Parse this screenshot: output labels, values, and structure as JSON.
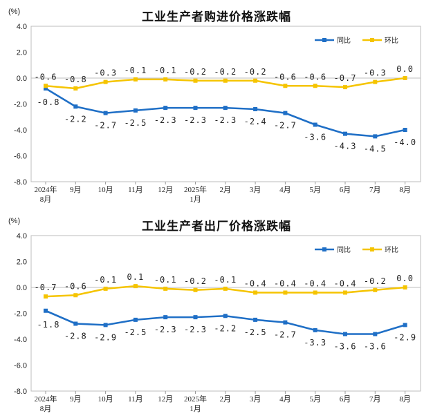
{
  "chart_data": [
    {
      "type": "line",
      "title": "工业生产者购进价格涨跌幅",
      "unit": "(%)",
      "categories": [
        [
          "2024年",
          "8月"
        ],
        [
          "9月"
        ],
        [
          "10月"
        ],
        [
          "11月"
        ],
        [
          "12月"
        ],
        [
          "2025年",
          "1月"
        ],
        [
          "2月"
        ],
        [
          "3月"
        ],
        [
          "4月"
        ],
        [
          "5月"
        ],
        [
          "6月"
        ],
        [
          "7月"
        ],
        [
          "8月"
        ]
      ],
      "ylim": [
        -8.0,
        4.0
      ],
      "yticks": [
        "4.0",
        "2.0",
        "0.0",
        "-2.0",
        "-4.0",
        "-6.0",
        "-8.0"
      ],
      "legend_position": "top-right",
      "grid": false,
      "series": [
        {
          "name": "同比",
          "color": "#1f6fc6",
          "values": [
            -0.8,
            -2.2,
            -2.7,
            -2.5,
            -2.3,
            -2.3,
            -2.3,
            -2.4,
            -2.7,
            -3.6,
            -4.3,
            -4.5,
            -4.0
          ],
          "labels": [
            "-0.8",
            "-2.2",
            "-2.7",
            "-2.5",
            "-2.3",
            "-2.3",
            "-2.3",
            "-2.4",
            "-2.7",
            "-3.6",
            "-4.3",
            "-4.5",
            "-4.0"
          ]
        },
        {
          "name": "环比",
          "color": "#f5c400",
          "values": [
            -0.6,
            -0.8,
            -0.3,
            -0.1,
            -0.1,
            -0.2,
            -0.2,
            -0.2,
            -0.6,
            -0.6,
            -0.7,
            -0.3,
            0.0
          ],
          "labels": [
            "-0.6",
            "-0.8",
            "-0.3",
            "-0.1",
            "-0.1",
            "-0.2",
            "-0.2",
            "-0.2",
            "-0.6",
            "-0.6",
            "-0.7",
            "-0.3",
            "0.0"
          ]
        }
      ]
    },
    {
      "type": "line",
      "title": "工业生产者出厂价格涨跌幅",
      "unit": "(%)",
      "categories": [
        [
          "2024年",
          "8月"
        ],
        [
          "9月"
        ],
        [
          "10月"
        ],
        [
          "11月"
        ],
        [
          "12月"
        ],
        [
          "2025年",
          "1月"
        ],
        [
          "2月"
        ],
        [
          "3月"
        ],
        [
          "4月"
        ],
        [
          "5月"
        ],
        [
          "6月"
        ],
        [
          "7月"
        ],
        [
          "8月"
        ]
      ],
      "ylim": [
        -8.0,
        4.0
      ],
      "yticks": [
        "4.0",
        "2.0",
        "0.0",
        "-2.0",
        "-4.0",
        "-6.0",
        "-8.0"
      ],
      "legend_position": "top-right",
      "grid": false,
      "series": [
        {
          "name": "同比",
          "color": "#1f6fc6",
          "values": [
            -1.8,
            -2.8,
            -2.9,
            -2.5,
            -2.3,
            -2.3,
            -2.2,
            -2.5,
            -2.7,
            -3.3,
            -3.6,
            -3.6,
            -2.9
          ],
          "labels": [
            "-1.8",
            "-2.8",
            "-2.9",
            "-2.5",
            "-2.3",
            "-2.3",
            "-2.2",
            "-2.5",
            "-2.7",
            "-3.3",
            "-3.6",
            "-3.6",
            "-2.9"
          ]
        },
        {
          "name": "环比",
          "color": "#f5c400",
          "values": [
            -0.7,
            -0.6,
            -0.1,
            0.1,
            -0.1,
            -0.2,
            -0.1,
            -0.4,
            -0.4,
            -0.4,
            -0.4,
            -0.2,
            0.0
          ],
          "labels": [
            "-0.7",
            "-0.6",
            "-0.1",
            "0.1",
            "-0.1",
            "-0.2",
            "-0.1",
            "-0.4",
            "-0.4",
            "-0.4",
            "-0.4",
            "-0.2",
            "0.0"
          ]
        }
      ]
    }
  ]
}
